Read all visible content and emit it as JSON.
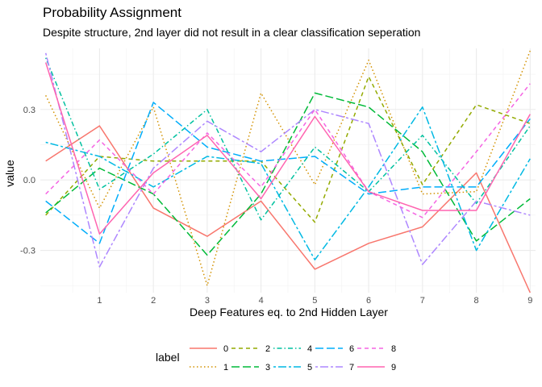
{
  "chart_data": {
    "type": "line",
    "title": "Probability Assignment",
    "subtitle": "Despite structure, 2nd layer did not result in a clear classification seperation",
    "xlabel": "Deep Features eq. to 2nd Hidden Layer",
    "ylabel": "value",
    "x": [
      0,
      1,
      2,
      3,
      4,
      5,
      6,
      7,
      8,
      9
    ],
    "x_ticks": [
      "1",
      "2",
      "3",
      "4",
      "5",
      "6",
      "7",
      "8",
      "9"
    ],
    "y_ticks": [
      "-0.3",
      "0.0",
      "0.3"
    ],
    "xlim": [
      -0.1,
      9.1
    ],
    "ylim": [
      -0.48,
      0.56
    ],
    "grid": true,
    "legend_title": "label",
    "legend_position": "bottom",
    "series": [
      {
        "name": "0",
        "color": "#F8766D",
        "dash": "solid",
        "values": [
          0.08,
          0.23,
          -0.12,
          -0.24,
          -0.09,
          -0.38,
          -0.27,
          -0.2,
          0.03,
          -0.48
        ]
      },
      {
        "name": "1",
        "color": "#D39200",
        "dash": "dotted",
        "values": [
          0.36,
          -0.12,
          0.31,
          -0.45,
          0.37,
          -0.02,
          0.51,
          -0.06,
          -0.05,
          0.55
        ]
      },
      {
        "name": "2",
        "color": "#93AA00",
        "dash": "dashed",
        "values": [
          -0.15,
          0.1,
          0.08,
          0.08,
          0.08,
          -0.18,
          0.44,
          -0.02,
          0.32,
          0.24
        ]
      },
      {
        "name": "3",
        "color": "#00BA38",
        "dash": "longdash",
        "values": [
          -0.14,
          0.05,
          -0.06,
          -0.32,
          -0.06,
          0.37,
          0.31,
          0.12,
          -0.26,
          -0.08
        ]
      },
      {
        "name": "4",
        "color": "#00C19F",
        "dash": "dotdash",
        "values": [
          0.52,
          -0.04,
          0.11,
          0.3,
          -0.17,
          0.14,
          -0.05,
          0.19,
          -0.1,
          0.23
        ]
      },
      {
        "name": "5",
        "color": "#00B9E3",
        "dash": "twodash",
        "values": [
          0.16,
          0.1,
          -0.03,
          0.1,
          0.07,
          -0.34,
          -0.03,
          0.31,
          -0.3,
          0.09
        ]
      },
      {
        "name": "6",
        "color": "#00ADFA",
        "dash": "longdash",
        "values": [
          -0.09,
          -0.27,
          0.33,
          0.14,
          0.08,
          0.1,
          -0.06,
          -0.03,
          -0.03,
          0.26
        ]
      },
      {
        "name": "7",
        "color": "#AE87FF",
        "dash": "twodash",
        "values": [
          0.54,
          -0.37,
          0.05,
          0.25,
          0.12,
          0.3,
          0.24,
          -0.36,
          -0.09,
          -0.15
        ]
      },
      {
        "name": "8",
        "color": "#F564E3",
        "dash": "dashed",
        "values": [
          -0.06,
          0.17,
          -0.06,
          0.2,
          -0.03,
          0.3,
          -0.05,
          -0.16,
          0.12,
          0.41
        ]
      },
      {
        "name": "9",
        "color": "#FF64B0",
        "dash": "solid",
        "values": [
          0.5,
          -0.23,
          0.03,
          0.19,
          -0.08,
          0.27,
          -0.05,
          -0.13,
          -0.13,
          0.28
        ]
      }
    ]
  }
}
